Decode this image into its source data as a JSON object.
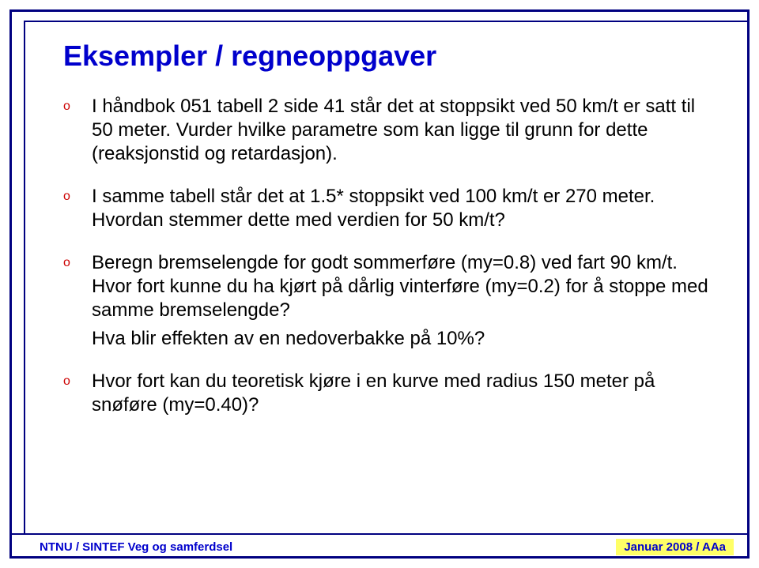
{
  "slide": {
    "title": "Eksempler / regneoppgaver",
    "bullets": [
      "I håndbok 051 tabell 2 side 41 står det at stoppsikt ved 50 km/t er satt til 50 meter. Vurder hvilke parametre som kan ligge til grunn for dette (reaksjonstid og retardasjon).",
      "I samme tabell står det at 1.5* stoppsikt ved 100 km/t er 270 meter. Hvordan stemmer dette med verdien for 50 km/t?",
      "Beregn bremselengde for godt sommerføre (my=0.8) ved fart 90 km/t. Hvor fort kunne du ha kjørt på dårlig vinterføre (my=0.2) for å stoppe med samme bremselengde?",
      "Hva blir effekten av en nedoverbakke på 10%?",
      "Hvor fort kan du teoretisk kjøre i en kurve med radius 150 meter på snøføre (my=0.40)?"
    ],
    "bullet_marker": "o"
  },
  "footer": {
    "left": "NTNU / SINTEF Veg og samferdsel",
    "right": "Januar 2008 / AAa"
  },
  "style": {
    "title_color": "#0000cc",
    "title_fontsize": 36,
    "body_color": "#000000",
    "body_fontsize": 24,
    "bullet_color": "#cc0000",
    "border_color": "#000080",
    "footer_color": "#0000cc",
    "footer_highlight": "#ffff66",
    "background": "#ffffff"
  }
}
